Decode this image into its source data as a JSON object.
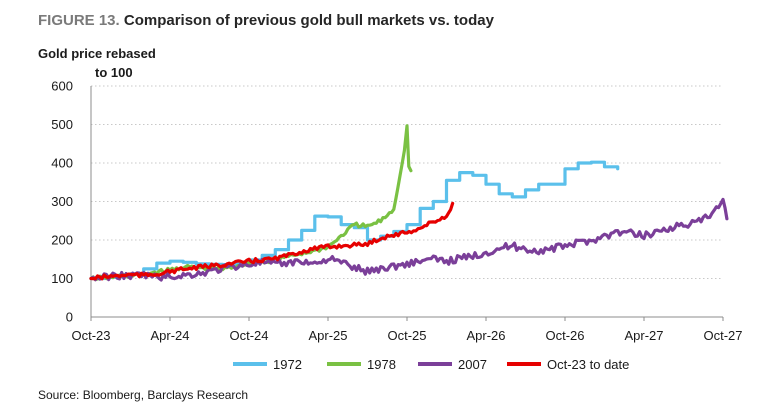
{
  "figure": {
    "number": "FIGURE 13.",
    "title": "Comparison of previous gold bull markets vs. today",
    "ylabel_line1": "Gold price rebased",
    "ylabel_line2": "to 100",
    "source": "Source: Bloomberg, Barclays Research"
  },
  "chart_data": {
    "type": "line",
    "title": "Comparison of previous gold bull markets vs. today",
    "xlabel": "",
    "ylabel": "Gold price rebased to 100",
    "ylim": [
      0,
      600
    ],
    "yticks": [
      0,
      100,
      200,
      300,
      400,
      500,
      600
    ],
    "xlim": [
      "2023-10",
      "2027-10"
    ],
    "x_ticks": [
      "Oct-23",
      "Apr-24",
      "Oct-24",
      "Apr-25",
      "Oct-25",
      "Apr-26",
      "Oct-26",
      "Apr-27",
      "Oct-27"
    ],
    "grid": "horizontal dotted",
    "legend_position": "bottom",
    "series": [
      {
        "name": "1972",
        "color": "#5BC0EB",
        "points": [
          [
            "2023-10",
            100
          ],
          [
            "2023-11",
            103
          ],
          [
            "2023-12",
            107
          ],
          [
            "2024-01",
            112
          ],
          [
            "2024-02",
            125
          ],
          [
            "2024-03",
            140
          ],
          [
            "2024-04",
            145
          ],
          [
            "2024-05",
            142
          ],
          [
            "2024-06",
            138
          ],
          [
            "2024-07",
            137
          ],
          [
            "2024-08",
            136
          ],
          [
            "2024-09",
            140
          ],
          [
            "2024-10",
            148
          ],
          [
            "2024-11",
            160
          ],
          [
            "2024-12",
            175
          ],
          [
            "2025-01",
            200
          ],
          [
            "2025-02",
            225
          ],
          [
            "2025-03",
            262
          ],
          [
            "2025-04",
            260
          ],
          [
            "2025-05",
            240
          ],
          [
            "2025-06",
            232
          ],
          [
            "2025-07",
            200
          ],
          [
            "2025-08",
            210
          ],
          [
            "2025-09",
            222
          ],
          [
            "2025-10",
            240
          ],
          [
            "2025-11",
            282
          ],
          [
            "2025-12",
            300
          ],
          [
            "2026-01",
            355
          ],
          [
            "2026-02",
            375
          ],
          [
            "2026-03",
            368
          ],
          [
            "2026-04",
            345
          ],
          [
            "2026-05",
            320
          ],
          [
            "2026-06",
            312
          ],
          [
            "2026-07",
            330
          ],
          [
            "2026-08",
            345
          ],
          [
            "2026-09",
            345
          ],
          [
            "2026-10",
            385
          ],
          [
            "2026-11",
            400
          ],
          [
            "2026-12",
            402
          ],
          [
            "2027-01",
            390
          ],
          [
            "2027-02",
            385
          ]
        ]
      },
      {
        "name": "1978",
        "color": "#7AC143",
        "points": [
          [
            "2023-10",
            100
          ],
          [
            "2023-11",
            102
          ],
          [
            "2023-12",
            105
          ],
          [
            "2024-01",
            108
          ],
          [
            "2024-02",
            110
          ],
          [
            "2024-03",
            117
          ],
          [
            "2024-04",
            122
          ],
          [
            "2024-05",
            130
          ],
          [
            "2024-06",
            128
          ],
          [
            "2024-07",
            126
          ],
          [
            "2024-08",
            124
          ],
          [
            "2024-09",
            132
          ],
          [
            "2024-10",
            140
          ],
          [
            "2024-11",
            142
          ],
          [
            "2024-12",
            150
          ],
          [
            "2025-01",
            158
          ],
          [
            "2025-02",
            165
          ],
          [
            "2025-03",
            172
          ],
          [
            "2025-04",
            182
          ],
          [
            "2025-05",
            210
          ],
          [
            "2025-06",
            240
          ],
          [
            "2025-07",
            235
          ],
          [
            "2025-08",
            250
          ],
          [
            "2025-09",
            280
          ],
          [
            "2025-09-15",
            370
          ],
          [
            "2025-09-25",
            430
          ],
          [
            "2025-10",
            500
          ],
          [
            "2025-10-05",
            390
          ],
          [
            "2025-10-10",
            380
          ]
        ]
      },
      {
        "name": "2007",
        "color": "#7B3F99",
        "points": [
          [
            "2023-10",
            100
          ],
          [
            "2023-11",
            104
          ],
          [
            "2023-12",
            108
          ],
          [
            "2024-01",
            106
          ],
          [
            "2024-02",
            110
          ],
          [
            "2024-03",
            103
          ],
          [
            "2024-04",
            105
          ],
          [
            "2024-05",
            108
          ],
          [
            "2024-06",
            112
          ],
          [
            "2024-07",
            118
          ],
          [
            "2024-08",
            126
          ],
          [
            "2024-09",
            132
          ],
          [
            "2024-10",
            138
          ],
          [
            "2024-11",
            142
          ],
          [
            "2024-12",
            136
          ],
          [
            "2025-01",
            140
          ],
          [
            "2025-02",
            146
          ],
          [
            "2025-03",
            138
          ],
          [
            "2025-04",
            152
          ],
          [
            "2025-05",
            142
          ],
          [
            "2025-06",
            128
          ],
          [
            "2025-07",
            118
          ],
          [
            "2025-08",
            126
          ],
          [
            "2025-09",
            132
          ],
          [
            "2025-10",
            138
          ],
          [
            "2025-11",
            146
          ],
          [
            "2025-12",
            150
          ],
          [
            "2026-01",
            145
          ],
          [
            "2026-02",
            152
          ],
          [
            "2026-03",
            158
          ],
          [
            "2026-04",
            168
          ],
          [
            "2026-05",
            178
          ],
          [
            "2026-06",
            185
          ],
          [
            "2026-07",
            176
          ],
          [
            "2026-08",
            172
          ],
          [
            "2026-09",
            176
          ],
          [
            "2026-10",
            186
          ],
          [
            "2026-11",
            192
          ],
          [
            "2026-12",
            200
          ],
          [
            "2027-01",
            210
          ],
          [
            "2027-02",
            220
          ],
          [
            "2027-03",
            218
          ],
          [
            "2027-04",
            212
          ],
          [
            "2027-05",
            222
          ],
          [
            "2027-06",
            232
          ],
          [
            "2027-07",
            238
          ],
          [
            "2027-08",
            245
          ],
          [
            "2027-09",
            262
          ],
          [
            "2027-10",
            300
          ],
          [
            "2027-10-10",
            255
          ]
        ]
      },
      {
        "name": "Oct-23 to date",
        "color": "#E60000",
        "points": [
          [
            "2023-10",
            100
          ],
          [
            "2023-11",
            104
          ],
          [
            "2023-12",
            107
          ],
          [
            "2024-01",
            110
          ],
          [
            "2024-02",
            108
          ],
          [
            "2024-03",
            112
          ],
          [
            "2024-04",
            118
          ],
          [
            "2024-05",
            124
          ],
          [
            "2024-06",
            128
          ],
          [
            "2024-07",
            132
          ],
          [
            "2024-08",
            136
          ],
          [
            "2024-09",
            140
          ],
          [
            "2024-10",
            145
          ],
          [
            "2024-11",
            148
          ],
          [
            "2024-12",
            152
          ],
          [
            "2025-01",
            160
          ],
          [
            "2025-02",
            170
          ],
          [
            "2025-03",
            178
          ],
          [
            "2025-04",
            182
          ],
          [
            "2025-05",
            185
          ],
          [
            "2025-06",
            187
          ],
          [
            "2025-07",
            190
          ],
          [
            "2025-08",
            205
          ],
          [
            "2025-09",
            213
          ],
          [
            "2025-10",
            220
          ],
          [
            "2025-11",
            230
          ],
          [
            "2025-12",
            248
          ],
          [
            "2026-01",
            260
          ],
          [
            "2026-01-15",
            295
          ]
        ]
      }
    ]
  }
}
